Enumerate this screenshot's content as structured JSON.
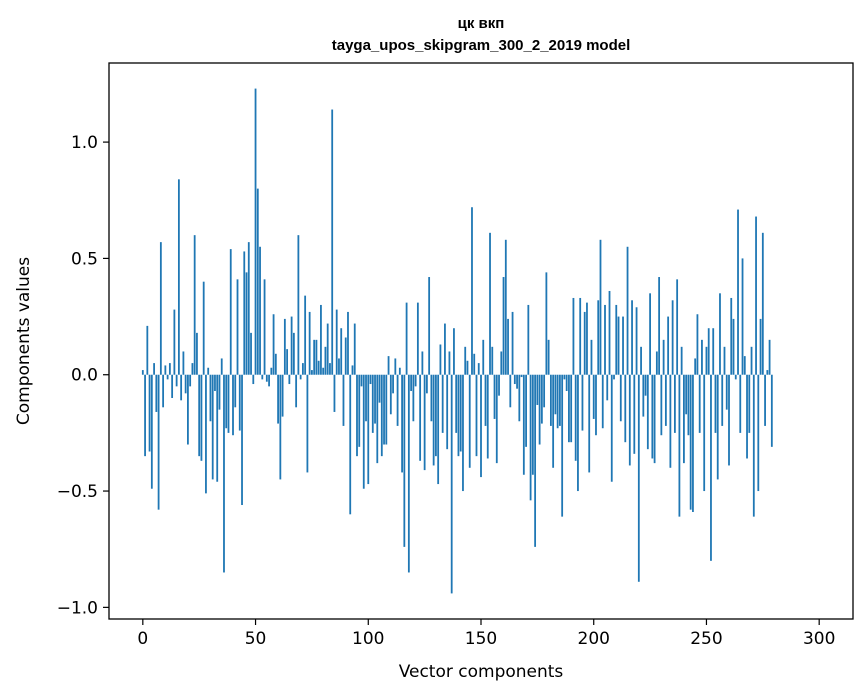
{
  "chart_data": {
    "type": "bar",
    "title_line1": "цк вкп",
    "title_line2": "tayga_upos_skipgram_300_2_2019 model",
    "xlabel": "Vector components",
    "ylabel": "Components values",
    "xlim": [
      -15,
      315
    ],
    "ylim": [
      -1.05,
      1.34
    ],
    "x_ticks": [
      {
        "value": 0,
        "label": "0"
      },
      {
        "value": 50,
        "label": "50"
      },
      {
        "value": 100,
        "label": "100"
      },
      {
        "value": 150,
        "label": "150"
      },
      {
        "value": 200,
        "label": "200"
      },
      {
        "value": 250,
        "label": "250"
      },
      {
        "value": 300,
        "label": "300"
      }
    ],
    "y_ticks": [
      {
        "value": 1.0,
        "label": "1.0"
      },
      {
        "value": 0.5,
        "label": "0.5"
      },
      {
        "value": 0.0,
        "label": "0.0"
      },
      {
        "value": -0.5,
        "label": "−0.5"
      },
      {
        "value": -1.0,
        "label": "−1.0"
      }
    ],
    "bar_color": "#1f77b4",
    "values": [
      0.02,
      -0.35,
      0.21,
      -0.33,
      -0.49,
      0.05,
      -0.16,
      -0.58,
      0.57,
      -0.14,
      0.04,
      -0.02,
      0.05,
      -0.1,
      0.28,
      -0.05,
      0.84,
      -0.11,
      0.1,
      -0.08,
      -0.3,
      -0.05,
      0.05,
      0.6,
      0.18,
      -0.35,
      -0.37,
      0.4,
      -0.51,
      0.03,
      -0.2,
      -0.45,
      -0.07,
      -0.46,
      -0.15,
      0.07,
      -0.85,
      -0.23,
      -0.25,
      0.54,
      -0.26,
      -0.14,
      0.41,
      -0.24,
      -0.56,
      0.53,
      0.44,
      0.57,
      0.18,
      -0.04,
      1.23,
      0.8,
      0.55,
      -0.02,
      0.41,
      -0.03,
      -0.05,
      0.03,
      0.26,
      0.09,
      -0.21,
      -0.45,
      -0.18,
      0.24,
      0.11,
      -0.04,
      0.25,
      0.18,
      -0.14,
      0.6,
      -0.02,
      0.05,
      0.34,
      -0.42,
      0.27,
      0.02,
      0.15,
      0.15,
      0.06,
      0.3,
      0.03,
      0.12,
      0.22,
      0.05,
      1.14,
      -0.16,
      0.28,
      0.07,
      0.2,
      -0.22,
      0.16,
      0.27,
      -0.6,
      0.04,
      0.22,
      -0.35,
      -0.31,
      -0.05,
      -0.49,
      -0.2,
      -0.47,
      -0.04,
      -0.25,
      -0.21,
      -0.38,
      -0.12,
      -0.35,
      -0.3,
      -0.3,
      0.08,
      -0.17,
      -0.08,
      0.07,
      -0.22,
      0.03,
      -0.42,
      -0.74,
      0.31,
      -0.85,
      -0.07,
      -0.2,
      -0.05,
      0.31,
      -0.37,
      0.1,
      -0.41,
      -0.08,
      0.42,
      -0.2,
      -0.39,
      -0.35,
      -0.47,
      0.13,
      -0.25,
      0.22,
      -0.32,
      0.1,
      -0.94,
      0.2,
      -0.25,
      -0.35,
      -0.33,
      -0.5,
      0.12,
      0.06,
      -0.4,
      0.72,
      0.09,
      -0.35,
      0.05,
      -0.44,
      0.15,
      -0.22,
      -0.36,
      0.61,
      0.12,
      -0.19,
      -0.38,
      -0.09,
      0.1,
      0.42,
      0.58,
      0.24,
      -0.14,
      0.27,
      -0.04,
      -0.06,
      -0.2,
      -0.01,
      -0.43,
      -0.31,
      0.3,
      -0.54,
      -0.43,
      -0.74,
      -0.13,
      -0.3,
      -0.21,
      -0.14,
      0.44,
      0.15,
      -0.22,
      -0.4,
      -0.17,
      -0.23,
      -0.22,
      -0.61,
      -0.02,
      -0.07,
      -0.29,
      -0.29,
      0.33,
      -0.37,
      -0.5,
      0.33,
      -0.24,
      0.27,
      0.31,
      -0.42,
      0.15,
      -0.19,
      -0.26,
      0.32,
      0.58,
      -0.23,
      0.3,
      -0.11,
      0.36,
      -0.46,
      -0.02,
      0.3,
      0.25,
      -0.2,
      0.25,
      -0.29,
      0.55,
      -0.39,
      0.32,
      -0.34,
      0.29,
      -0.89,
      0.12,
      -0.18,
      -0.09,
      -0.32,
      0.35,
      -0.36,
      -0.38,
      0.1,
      0.42,
      -0.26,
      0.15,
      -0.22,
      0.25,
      -0.4,
      0.32,
      -0.25,
      0.41,
      -0.61,
      0.12,
      -0.38,
      -0.17,
      -0.26,
      -0.58,
      -0.59,
      0.07,
      0.26,
      -0.25,
      0.15,
      -0.5,
      0.12,
      0.2,
      -0.8,
      0.2,
      -0.25,
      -0.45,
      0.35,
      -0.22,
      0.12,
      -0.15,
      -0.39,
      0.33,
      0.24,
      -0.02,
      0.71,
      -0.25,
      0.5,
      0.08,
      -0.36,
      -0.25,
      0.12,
      -0.61,
      0.68,
      -0.5,
      0.24,
      0.61,
      -0.22,
      0.02,
      0.15,
      -0.31
    ]
  }
}
